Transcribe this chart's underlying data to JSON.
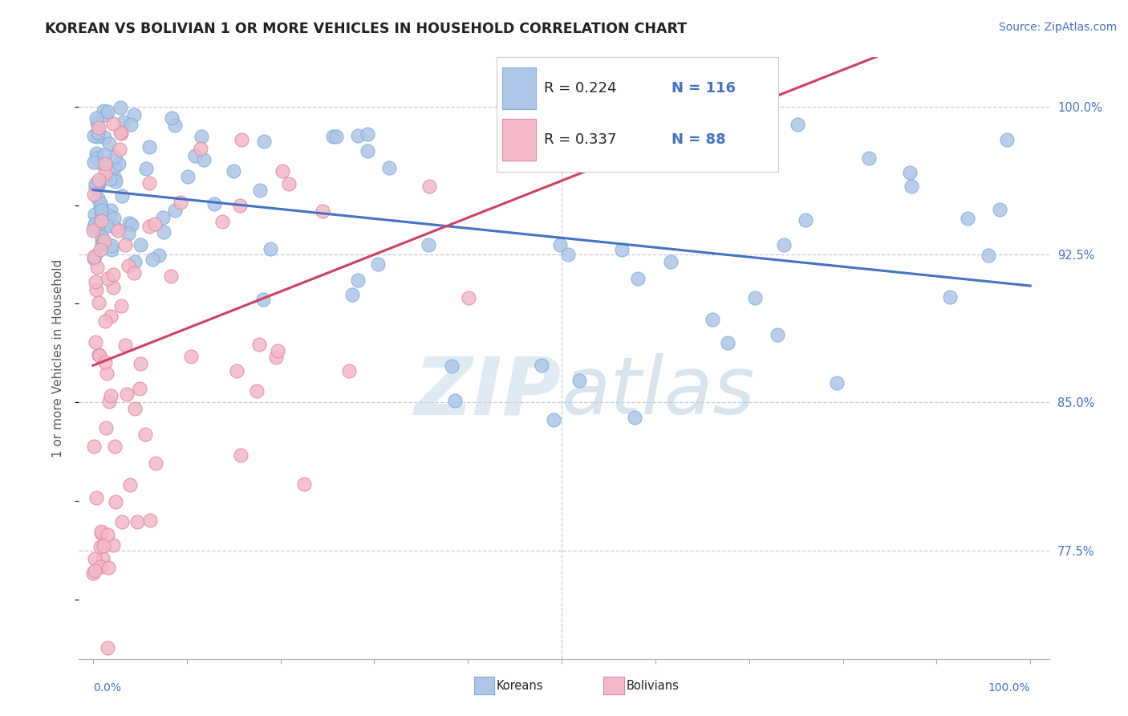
{
  "title": "KOREAN VS BOLIVIAN 1 OR MORE VEHICLES IN HOUSEHOLD CORRELATION CHART",
  "source_text": "Source: ZipAtlas.com",
  "ylabel": "1 or more Vehicles in Household",
  "yaxis_labels": [
    "100.0%",
    "92.5%",
    "85.0%",
    "77.5%"
  ],
  "yaxis_values": [
    100.0,
    92.5,
    85.0,
    77.5
  ],
  "ylim": [
    72.0,
    102.5
  ],
  "xlim": [
    -1.5,
    102.0
  ],
  "korean_color": "#aec6e8",
  "bolivian_color": "#f4b8c8",
  "korean_edge": "#7dafd8",
  "bolivian_edge": "#e08aa0",
  "trend_korean_color": "#4472c4",
  "trend_bolivian_color": "#d04060",
  "watermark_zip": "ZIP",
  "watermark_atlas": "atlas",
  "watermark_color": "#ccdded",
  "legend_r_korean": "R = 0.224",
  "legend_n_korean": "N = 116",
  "legend_r_bolivian": "R = 0.337",
  "legend_n_bolivian": "N = 88",
  "legend_color": "#4472c4",
  "bottom_legend_koreans": "Koreans",
  "bottom_legend_bolivians": "Bolivians"
}
